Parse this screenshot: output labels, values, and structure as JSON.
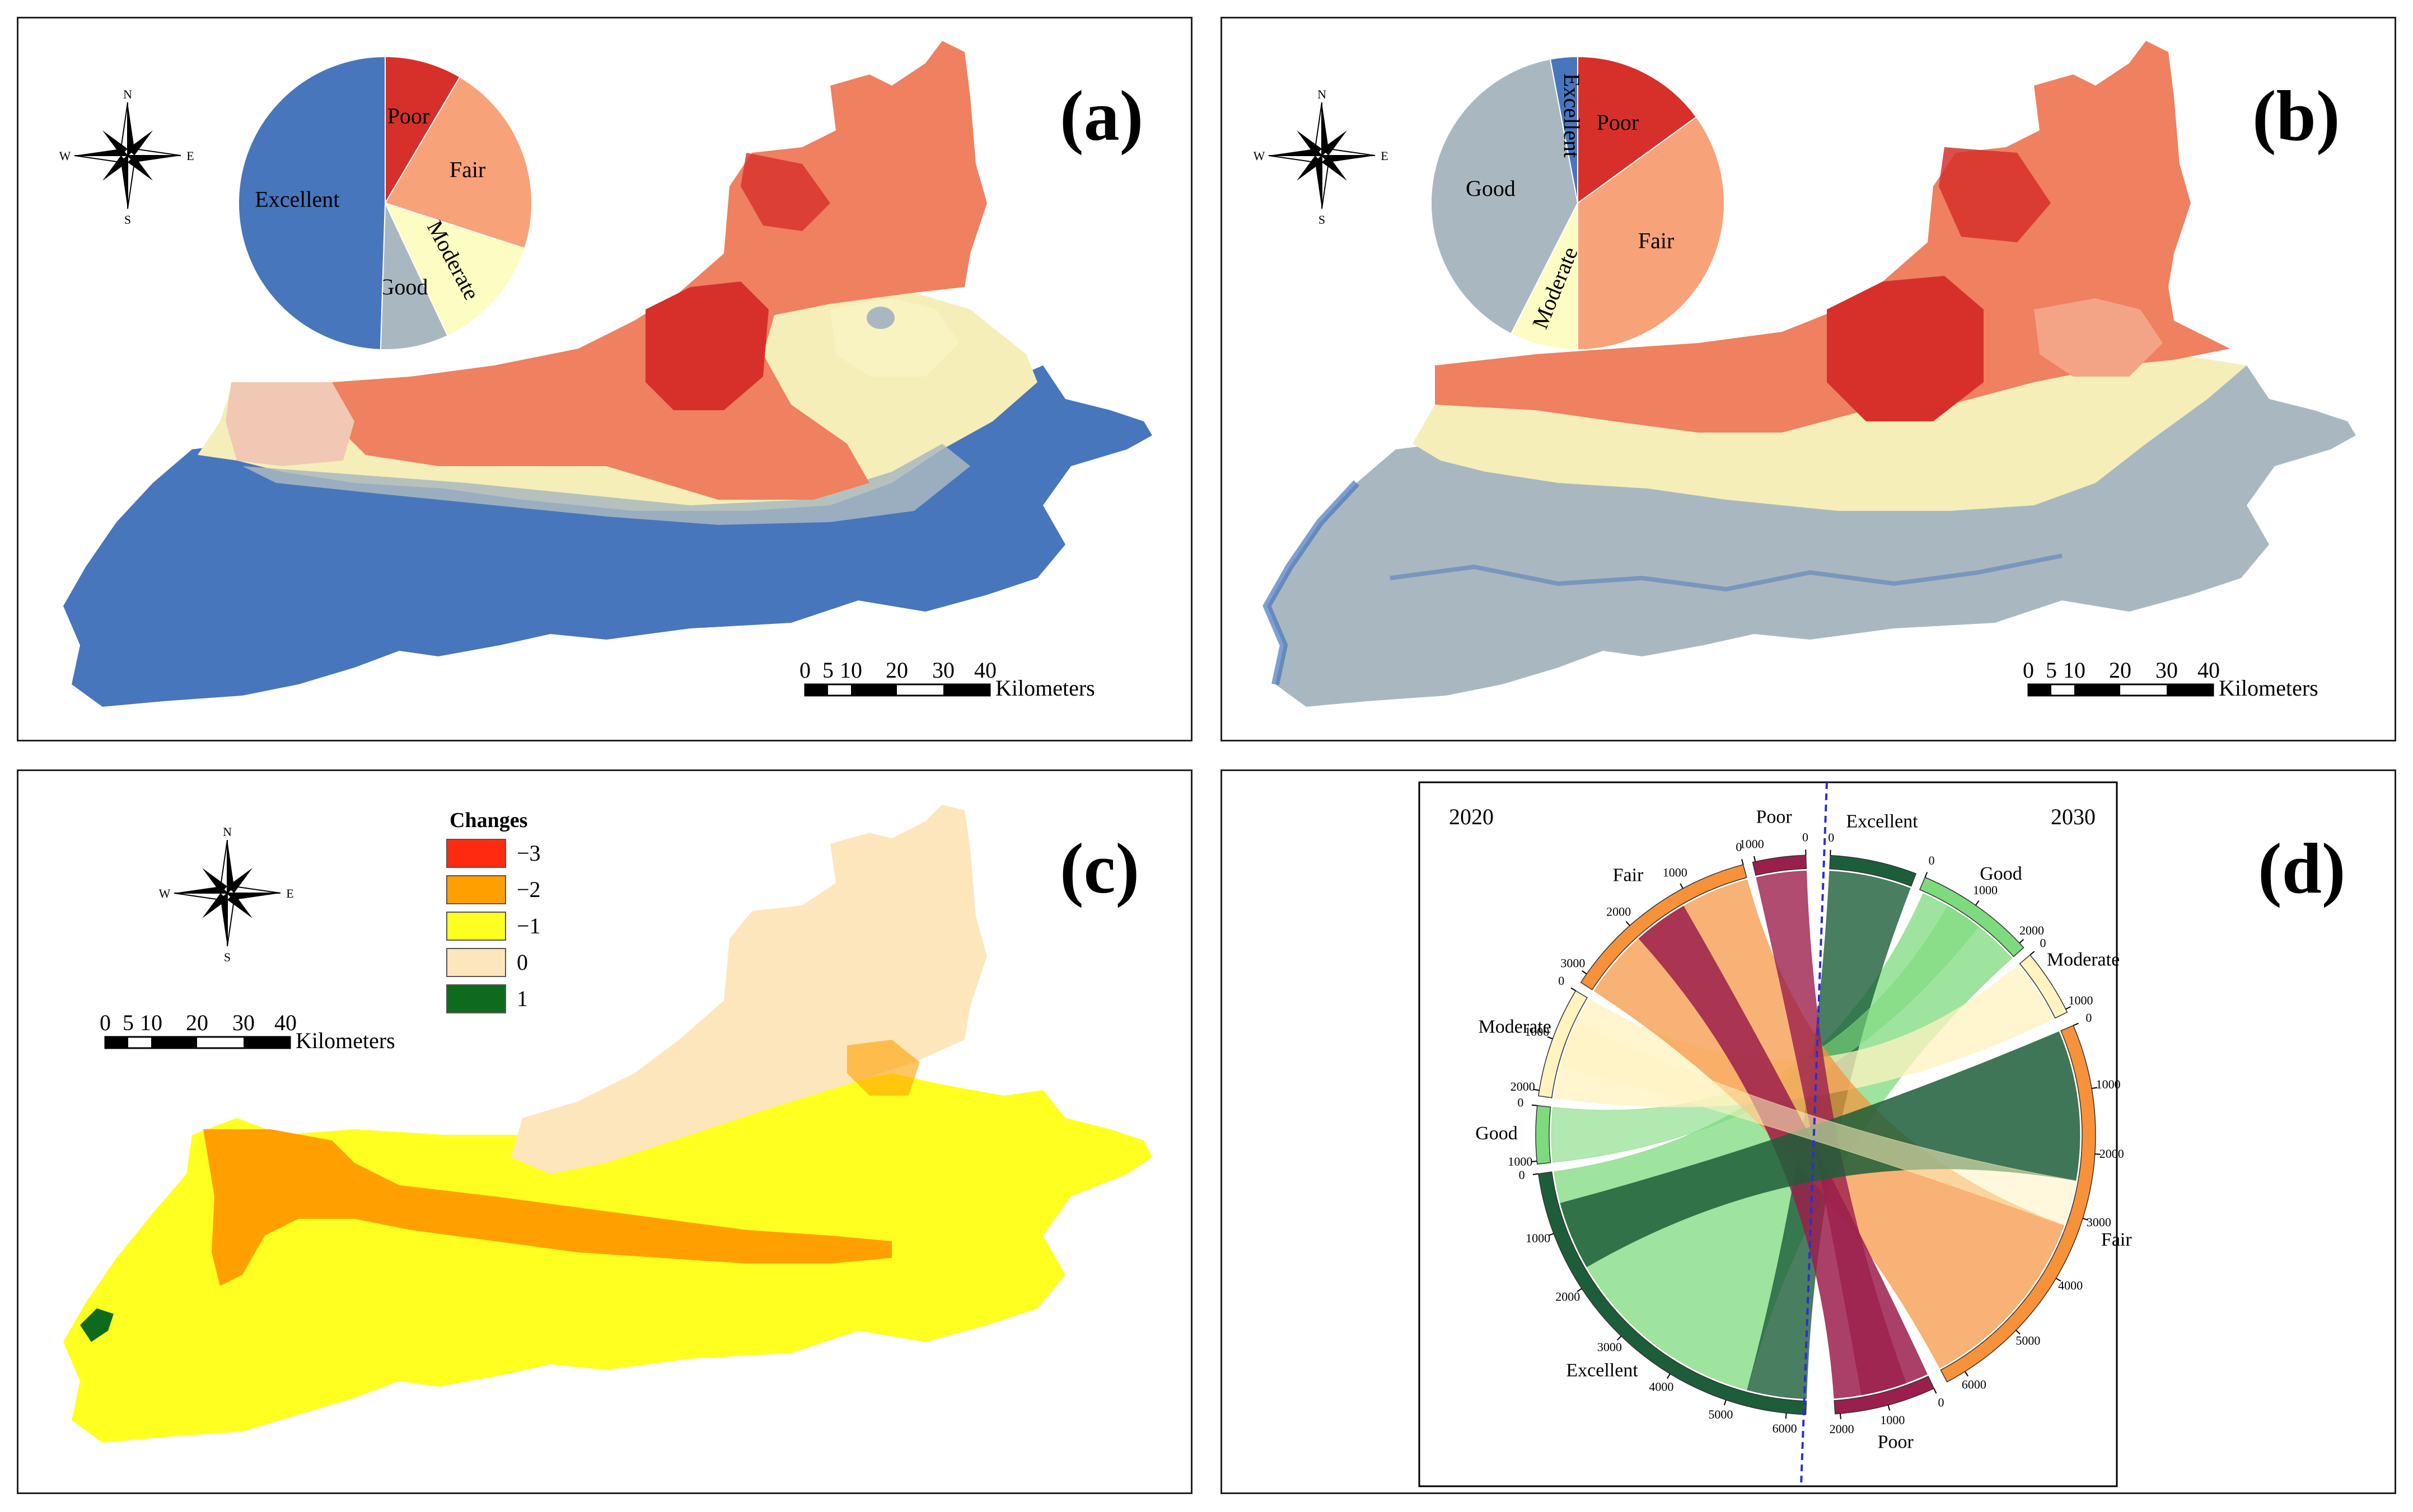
{
  "panels": {
    "a": {
      "label": "(a)"
    },
    "b": {
      "label": "(b)"
    },
    "c": {
      "label": "(c)"
    },
    "d": {
      "label": "(d)"
    }
  },
  "compass": {
    "n": "N",
    "s": "S",
    "e": "E",
    "w": "W"
  },
  "scalebar": {
    "ticks": [
      "0",
      "5",
      "10",
      "20",
      "30",
      "40"
    ],
    "unit": "Kilometers"
  },
  "classes": {
    "poor": "Poor",
    "fair": "Fair",
    "moderate": "Moderate",
    "good": "Good",
    "excellent": "Excellent"
  },
  "colors": {
    "poor": "#d7302a",
    "fair": "#f8a27a",
    "fair_map": "#ef8060",
    "moderate": "#fdfcc2",
    "good": "#a9b8c0",
    "excellent": "#4776bd",
    "chord_poor": "#9b1f4c",
    "chord_fair": "#f7923a",
    "chord_moderate": "#fff3c0",
    "chord_good": "#7ddb7d",
    "chord_excellent": "#1d5e3a"
  },
  "pie_a": {
    "slices": [
      {
        "key": "poor",
        "label": "Poor",
        "value": 8.5
      },
      {
        "key": "fair",
        "label": "Fair",
        "value": 21.5
      },
      {
        "key": "moderate",
        "label": "Moderate",
        "value": 13
      },
      {
        "key": "good",
        "label": "Good",
        "value": 7.5
      },
      {
        "key": "excellent",
        "label": "Excellent",
        "value": 49.5
      }
    ]
  },
  "pie_b": {
    "slices": [
      {
        "key": "poor",
        "label": "Poor",
        "value": 15
      },
      {
        "key": "fair",
        "label": "Fair",
        "value": 35
      },
      {
        "key": "moderate",
        "label": "Moderate",
        "value": 7.5
      },
      {
        "key": "good",
        "label": "Good",
        "value": 39.5
      },
      {
        "key": "excellent",
        "label": "Excellent",
        "value": 3
      }
    ]
  },
  "legend_c": {
    "title": "Changes",
    "items": [
      {
        "label": "−3",
        "color": "#ff2a10"
      },
      {
        "label": "−2",
        "color": "#ffa000"
      },
      {
        "label": "−1",
        "color": "#ffff20"
      },
      {
        "label": "0",
        "color": "#fde6bc"
      },
      {
        "label": "1",
        "color": "#0e6a1c"
      }
    ]
  },
  "chord": {
    "year_left": "2020",
    "year_right": "2030",
    "ticks": {
      "fair_2020": [
        "0",
        "1000",
        "2000",
        "3000"
      ],
      "poor_2020": [
        "0",
        "1000"
      ],
      "moderate_2020": [
        "0",
        "1000",
        "2000"
      ],
      "good_2020": [
        "0",
        "1000"
      ],
      "excellent_2020": [
        "0",
        "1000",
        "2000",
        "3000",
        "4000",
        "5000",
        "6000"
      ],
      "excellent_2030": [
        "0"
      ],
      "good_2030": [
        "0",
        "1000",
        "2000"
      ],
      "moderate_2030": [
        "0",
        "1000"
      ],
      "fair_2030": [
        "0",
        "1000",
        "2000",
        "3000",
        "4000",
        "5000",
        "6000"
      ],
      "poor_2030": [
        "0",
        "1000",
        "2000"
      ]
    }
  }
}
